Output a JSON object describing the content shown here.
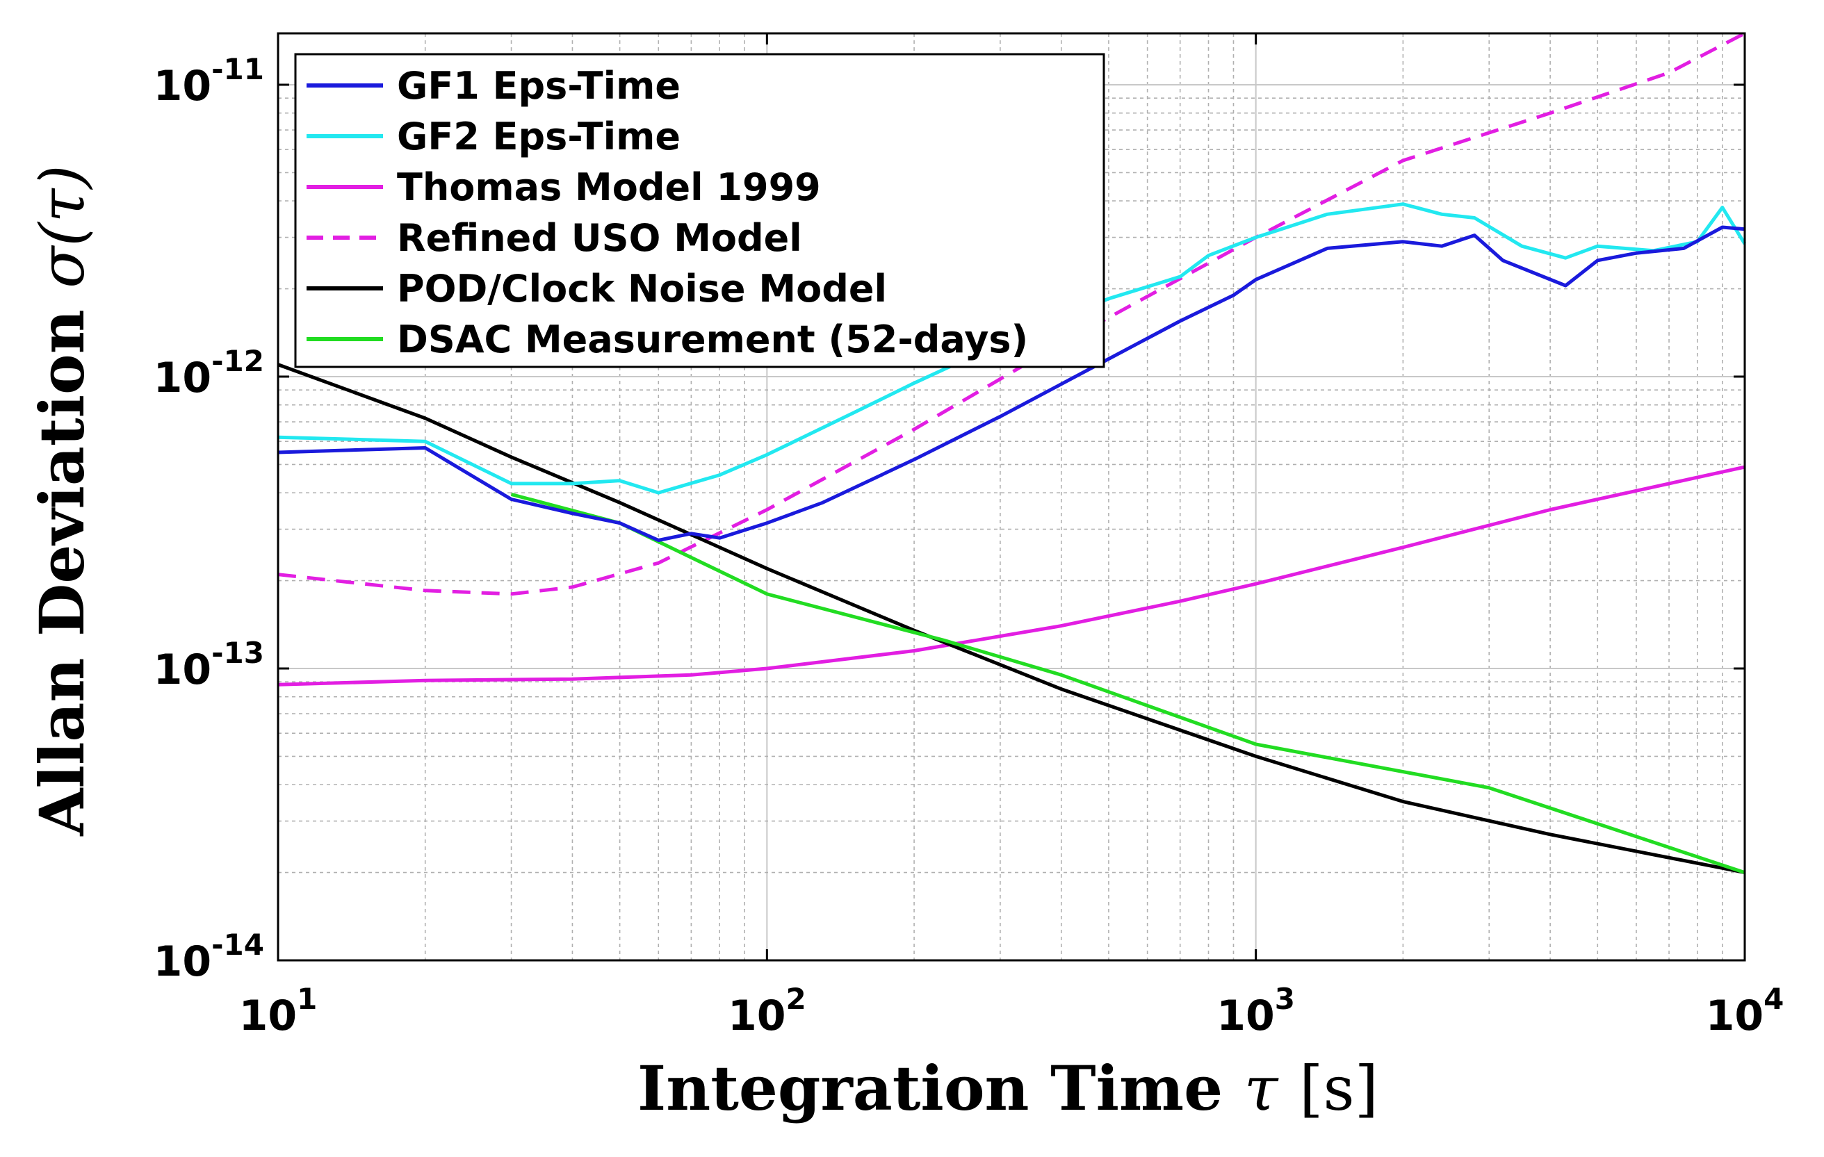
{
  "chart_data": {
    "type": "line",
    "title": "",
    "xlabel": "Integration Time",
    "xlabel_symbol": "τ",
    "xlabel_unit": "[s]",
    "ylabel": "Allan Deviation",
    "ylabel_symbol": "σ(τ)",
    "xscale": "log",
    "yscale": "log",
    "xlim": [
      10,
      10000
    ],
    "ylim": [
      1e-14,
      1.5e-11
    ],
    "grid": true,
    "legend_position": "top-left",
    "x_ticks": [
      {
        "base": "10",
        "exp": "1",
        "value": 10
      },
      {
        "base": "10",
        "exp": "2",
        "value": 100
      },
      {
        "base": "10",
        "exp": "3",
        "value": 1000
      },
      {
        "base": "10",
        "exp": "4",
        "value": 10000
      }
    ],
    "y_ticks": [
      {
        "base": "10",
        "exp": "-11",
        "value": 1e-11
      },
      {
        "base": "10",
        "exp": "-12",
        "value": 1e-12
      },
      {
        "base": "10",
        "exp": "-13",
        "value": 1e-13
      },
      {
        "base": "10",
        "exp": "-14",
        "value": 1e-14
      }
    ],
    "series": [
      {
        "name": "GF1 Eps-Time",
        "color": "#1a1adc",
        "dash": "solid",
        "points": [
          [
            10,
            5.5e-13
          ],
          [
            20,
            5.7e-13
          ],
          [
            30,
            3.8e-13
          ],
          [
            40,
            3.4e-13
          ],
          [
            50,
            3.15e-13
          ],
          [
            60,
            2.75e-13
          ],
          [
            70,
            2.9e-13
          ],
          [
            80,
            2.8e-13
          ],
          [
            100,
            3.15e-13
          ],
          [
            130,
            3.7e-13
          ],
          [
            200,
            5.2e-13
          ],
          [
            300,
            7.3e-13
          ],
          [
            500,
            1.15e-12
          ],
          [
            700,
            1.55e-12
          ],
          [
            900,
            1.9e-12
          ],
          [
            1000,
            2.15e-12
          ],
          [
            1400,
            2.75e-12
          ],
          [
            2000,
            2.9e-12
          ],
          [
            2400,
            2.8e-12
          ],
          [
            2800,
            3.05e-12
          ],
          [
            3200,
            2.5e-12
          ],
          [
            4300,
            2.05e-12
          ],
          [
            5000,
            2.5e-12
          ],
          [
            6000,
            2.65e-12
          ],
          [
            7500,
            2.75e-12
          ],
          [
            9000,
            3.25e-12
          ],
          [
            10000,
            3.2e-12
          ]
        ]
      },
      {
        "name": "GF2 Eps-Time",
        "color": "#22e8f0",
        "dash": "solid",
        "points": [
          [
            10,
            6.2e-13
          ],
          [
            20,
            6e-13
          ],
          [
            30,
            4.3e-13
          ],
          [
            40,
            4.3e-13
          ],
          [
            50,
            4.4e-13
          ],
          [
            60,
            4e-13
          ],
          [
            80,
            4.6e-13
          ],
          [
            100,
            5.4e-13
          ],
          [
            150,
            7.5e-13
          ],
          [
            200,
            9.5e-13
          ],
          [
            300,
            1.3e-12
          ],
          [
            500,
            1.85e-12
          ],
          [
            700,
            2.2e-12
          ],
          [
            800,
            2.6e-12
          ],
          [
            1000,
            3e-12
          ],
          [
            1400,
            3.6e-12
          ],
          [
            2000,
            3.9e-12
          ],
          [
            2400,
            3.6e-12
          ],
          [
            2800,
            3.5e-12
          ],
          [
            3500,
            2.8e-12
          ],
          [
            4300,
            2.55e-12
          ],
          [
            5000,
            2.8e-12
          ],
          [
            6500,
            2.7e-12
          ],
          [
            8000,
            2.9e-12
          ],
          [
            9000,
            3.8e-12
          ],
          [
            10000,
            2.85e-12
          ]
        ]
      },
      {
        "name": "Thomas Model 1999",
        "color": "#e21ee2",
        "dash": "solid",
        "points": [
          [
            10,
            8.8e-14
          ],
          [
            20,
            9.1e-14
          ],
          [
            40,
            9.2e-14
          ],
          [
            70,
            9.5e-14
          ],
          [
            100,
            1e-13
          ],
          [
            200,
            1.15e-13
          ],
          [
            400,
            1.4e-13
          ],
          [
            700,
            1.7e-13
          ],
          [
            1000,
            1.95e-13
          ],
          [
            2000,
            2.6e-13
          ],
          [
            4000,
            3.5e-13
          ],
          [
            7000,
            4.3e-13
          ],
          [
            10000,
            4.9e-13
          ]
        ]
      },
      {
        "name": "Refined USO Model",
        "color": "#e21ee2",
        "dash": "dashed",
        "points": [
          [
            10,
            2.1e-13
          ],
          [
            20,
            1.85e-13
          ],
          [
            30,
            1.8e-13
          ],
          [
            40,
            1.9e-13
          ],
          [
            60,
            2.3e-13
          ],
          [
            100,
            3.5e-13
          ],
          [
            200,
            6.6e-13
          ],
          [
            400,
            1.3e-12
          ],
          [
            1000,
            3e-12
          ],
          [
            2000,
            5.5e-12
          ],
          [
            4000,
            8e-12
          ],
          [
            7000,
            1.1e-11
          ],
          [
            10000,
            1.5e-11
          ]
        ]
      },
      {
        "name": "POD/Clock Noise Model",
        "color": "#000000",
        "dash": "solid",
        "points": [
          [
            10,
            1.1e-12
          ],
          [
            20,
            7.2e-13
          ],
          [
            30,
            5.3e-13
          ],
          [
            50,
            3.7e-13
          ],
          [
            100,
            2.2e-13
          ],
          [
            200,
            1.35e-13
          ],
          [
            400,
            8.5e-14
          ],
          [
            1000,
            5e-14
          ],
          [
            2000,
            3.5e-14
          ],
          [
            4000,
            2.7e-14
          ],
          [
            10000,
            2e-14
          ]
        ]
      },
      {
        "name": "DSAC Measurement (52-days)",
        "color": "#22dc22",
        "dash": "solid",
        "points": [
          [
            30,
            3.95e-13
          ],
          [
            50,
            3.15e-13
          ],
          [
            100,
            1.8e-13
          ],
          [
            230,
            1.25e-13
          ],
          [
            400,
            9.5e-14
          ],
          [
            1000,
            5.5e-14
          ],
          [
            3000,
            3.9e-14
          ],
          [
            10000,
            2e-14
          ]
        ]
      }
    ]
  }
}
